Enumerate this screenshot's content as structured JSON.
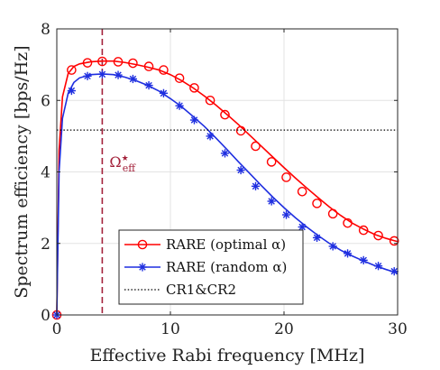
{
  "chart_data": {
    "type": "line",
    "xlabel": "Effective Rabi frequency [MHz]",
    "ylabel": "Spectrum efficiency [bps/Hz]",
    "xlim": [
      0,
      30
    ],
    "ylim": [
      0,
      8
    ],
    "xticks": [
      0,
      10,
      20,
      30
    ],
    "yticks": [
      0,
      2,
      4,
      6,
      8
    ],
    "grid": true,
    "legend_position": "bottom-left",
    "annotation": {
      "label": "Ω",
      "superscript": "★",
      "subscript": "eff",
      "x": 4,
      "color": "#a3213a"
    },
    "series": [
      {
        "name": "RARE (optimal α)",
        "color": "#ff0000",
        "marker": "circle",
        "curve_x": [
          0,
          0.2,
          0.5,
          1,
          1.5,
          2,
          3,
          4,
          5,
          6,
          7,
          8,
          9,
          10,
          11,
          12,
          13,
          14,
          15,
          16,
          17,
          18,
          19,
          20,
          21,
          22,
          23,
          24,
          25,
          26,
          27,
          28,
          29,
          30
        ],
        "curve_y": [
          0,
          4.6,
          6.1,
          6.75,
          6.95,
          7.02,
          7.08,
          7.1,
          7.1,
          7.06,
          7.0,
          6.93,
          6.85,
          6.72,
          6.55,
          6.35,
          6.12,
          5.87,
          5.6,
          5.32,
          5.02,
          4.72,
          4.42,
          4.12,
          3.83,
          3.55,
          3.28,
          3.02,
          2.78,
          2.57,
          2.4,
          2.25,
          2.14,
          2.05
        ],
        "marker_x": [
          0,
          1.3,
          2.7,
          4.0,
          5.4,
          6.7,
          8.1,
          9.4,
          10.8,
          12.1,
          13.5,
          14.8,
          16.2,
          17.5,
          18.9,
          20.2,
          21.6,
          22.9,
          24.3,
          25.6,
          27.0,
          28.3,
          29.7
        ],
        "marker_y": [
          0,
          6.85,
          7.05,
          7.09,
          7.08,
          7.04,
          6.95,
          6.85,
          6.62,
          6.35,
          6.0,
          5.6,
          5.15,
          4.72,
          4.28,
          3.85,
          3.45,
          3.12,
          2.83,
          2.57,
          2.37,
          2.22,
          2.07
        ]
      },
      {
        "name": "RARE (random α)",
        "color": "#1f2fe0",
        "marker": "asterisk",
        "curve_x": [
          0,
          0.2,
          0.5,
          1,
          1.5,
          2,
          3,
          4,
          5,
          6,
          7,
          8,
          9,
          10,
          11,
          12,
          13,
          14,
          15,
          16,
          17,
          18,
          19,
          20,
          21,
          22,
          23,
          24,
          25,
          26,
          27,
          28,
          29,
          30
        ],
        "curve_y": [
          0,
          4.0,
          5.5,
          6.2,
          6.5,
          6.63,
          6.72,
          6.74,
          6.72,
          6.65,
          6.55,
          6.42,
          6.26,
          6.05,
          5.82,
          5.55,
          5.27,
          4.95,
          4.62,
          4.28,
          3.95,
          3.62,
          3.3,
          3.0,
          2.72,
          2.46,
          2.22,
          2.0,
          1.81,
          1.65,
          1.51,
          1.38,
          1.27,
          1.17
        ],
        "marker_x": [
          0,
          1.3,
          2.7,
          4.0,
          5.4,
          6.7,
          8.1,
          9.4,
          10.8,
          12.1,
          13.5,
          14.8,
          16.2,
          17.5,
          18.9,
          20.2,
          21.6,
          22.9,
          24.3,
          25.6,
          27.0,
          28.3,
          29.7
        ],
        "marker_y": [
          0,
          6.27,
          6.68,
          6.73,
          6.71,
          6.6,
          6.42,
          6.2,
          5.85,
          5.45,
          5.0,
          4.52,
          4.05,
          3.6,
          3.18,
          2.8,
          2.46,
          2.16,
          1.92,
          1.72,
          1.53,
          1.37,
          1.22
        ]
      },
      {
        "name": "CR1&CR2",
        "color": "#000000",
        "marker": "none",
        "curve_x": [
          0,
          30
        ],
        "curve_y": [
          5.17,
          5.17
        ]
      }
    ]
  }
}
